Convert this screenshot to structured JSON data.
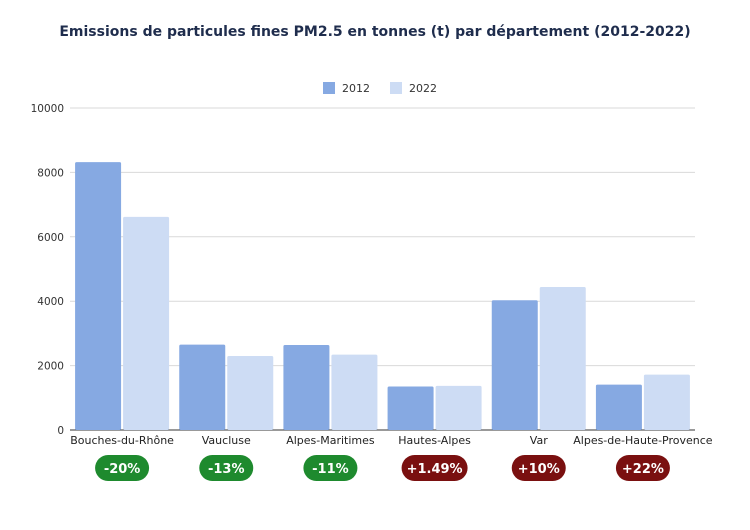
{
  "chart_data": {
    "type": "bar",
    "title": "Emissions de particules fines PM2.5 en tonnes (t) par département (2012-2022)",
    "categories": [
      "Bouches-du-Rhône",
      "Vaucluse",
      "Alpes-Maritimes",
      "Hautes-Alpes",
      "Var",
      "Alpes-de-Haute-Provence"
    ],
    "series": [
      {
        "name": "2012",
        "color": "#86a9e2",
        "values": [
          8320,
          2650,
          2640,
          1350,
          4030,
          1410
        ]
      },
      {
        "name": "2022",
        "color": "#cddcf4",
        "values": [
          6620,
          2300,
          2340,
          1370,
          4440,
          1720
        ]
      }
    ],
    "ylim": [
      0,
      10000
    ],
    "yticks": [
      0,
      2000,
      4000,
      6000,
      8000,
      10000
    ],
    "grid": true,
    "legend": "top-center",
    "changes": [
      {
        "label": "-20%",
        "color": "#1e8a2e"
      },
      {
        "label": "-13%",
        "color": "#1e8a2e"
      },
      {
        "label": "-11%",
        "color": "#1e8a2e"
      },
      {
        "label": "+1.49%",
        "color": "#7a1010"
      },
      {
        "label": "+10%",
        "color": "#7a1010"
      },
      {
        "label": "+22%",
        "color": "#7a1010"
      }
    ]
  }
}
